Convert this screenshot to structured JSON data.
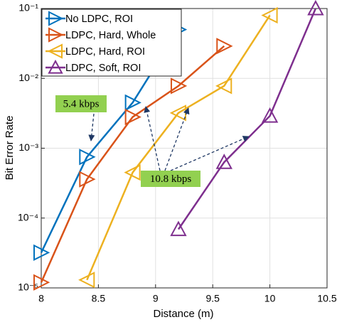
{
  "chart_data": {
    "type": "line",
    "xlabel": "Distance (m)",
    "ylabel": "Bit Error Rate",
    "xlim": [
      8,
      10.5
    ],
    "xticks": [
      8,
      8.5,
      9,
      9.5,
      10,
      10.5
    ],
    "ylim": [
      1e-05,
      0.1
    ],
    "yscale": "log",
    "yticks": [
      {
        "value": 1e-05,
        "label": "10⁻⁵"
      },
      {
        "value": 0.0001,
        "label": "10⁻⁴"
      },
      {
        "value": 0.001,
        "label": "10⁻³"
      },
      {
        "value": 0.01,
        "label": "10⁻²"
      },
      {
        "value": 0.1,
        "label": "10⁻¹"
      }
    ],
    "grid": true,
    "legend": "upper left",
    "series": [
      {
        "name": "No LDPC, ROI",
        "color": "#0072BD",
        "marker": "triangle-right",
        "x": [
          8,
          8.4,
          8.8,
          9.2
        ],
        "values": [
          3.2e-05,
          0.00075,
          0.0045,
          0.05
        ]
      },
      {
        "name": "LDPC, Hard, Whole",
        "color": "#D95319",
        "marker": "triangle-right",
        "x": [
          8,
          8.4,
          8.8,
          9.2,
          9.6
        ],
        "values": [
          1.2e-05,
          0.00036,
          0.0028,
          0.0078,
          0.029
        ]
      },
      {
        "name": "LDPC, Hard, ROI",
        "color": "#EDB120",
        "marker": "triangle-left",
        "x": [
          8.4,
          8.8,
          9.2,
          9.6,
          10
        ],
        "values": [
          1.3e-05,
          0.00045,
          0.0032,
          0.0078,
          0.08
        ]
      },
      {
        "name": "LDPC, Soft, ROI",
        "color": "#7E2F8E",
        "marker": "triangle-up",
        "x": [
          9.2,
          9.6,
          10,
          10.4
        ],
        "values": [
          6.9e-05,
          0.00063,
          0.0029,
          0.1
        ]
      }
    ],
    "annotations": [
      {
        "text": "5.4 kbps",
        "color": "#92D050"
      },
      {
        "text": "10.8 kbps",
        "color": "#92D050"
      }
    ]
  }
}
